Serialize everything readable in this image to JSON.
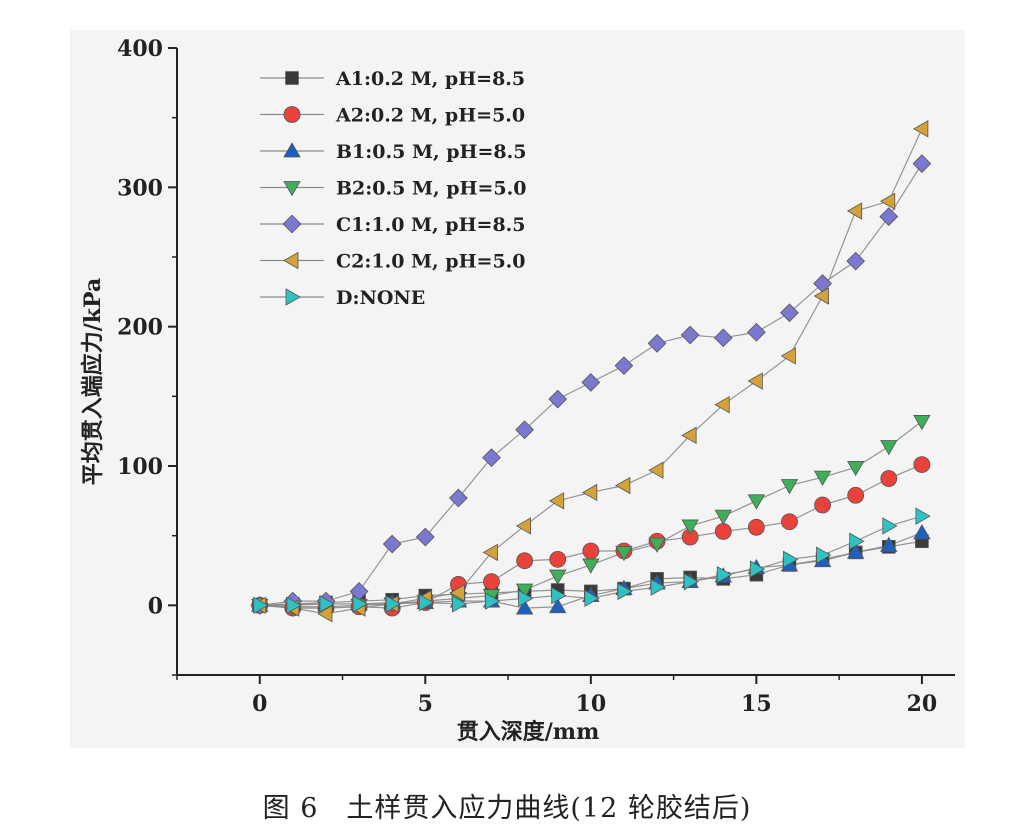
{
  "caption": "图 6　土样贯入应力曲线(12 轮胶结后)",
  "chart_data": {
    "type": "line",
    "title": "",
    "xlabel": "贯入深度/mm",
    "ylabel": "平均贯入端应力/kPa",
    "xlim": [
      -2.5,
      21
    ],
    "ylim": [
      -50,
      400
    ],
    "xticks": [
      0,
      5,
      10,
      15,
      20
    ],
    "yticks": [
      0,
      100,
      200,
      300,
      400
    ],
    "x_tick_labels": [
      "0",
      "5",
      "10",
      "15",
      "20"
    ],
    "y_tick_labels": [
      "0",
      "100",
      "200",
      "300",
      "400"
    ],
    "grid": false,
    "legend_position": "top-left",
    "x": [
      0,
      1,
      2,
      3,
      4,
      5,
      6,
      7,
      8,
      9,
      10,
      11,
      12,
      13,
      14,
      15,
      16,
      17,
      18,
      19,
      20
    ],
    "series": [
      {
        "name": "A1:0.2 M, pH=8.5",
        "marker": "square",
        "color": "#3a3a3a",
        "values": [
          0,
          1,
          2,
          3,
          4,
          7,
          8,
          9,
          10,
          11,
          10,
          12,
          19,
          20,
          19,
          22,
          29,
          33,
          38,
          42,
          46
        ]
      },
      {
        "name": "A2:0.2 M, pH=5.0",
        "marker": "circle",
        "color": "#e8423a",
        "values": [
          0,
          -2,
          -2,
          -1,
          -2,
          2,
          15,
          17,
          32,
          33,
          39,
          39,
          46,
          49,
          53,
          56,
          60,
          72,
          79,
          91,
          101
        ]
      },
      {
        "name": "B1:0.5 M, pH=8.5",
        "marker": "triangle-up",
        "color": "#1f5fbf",
        "values": [
          0,
          1,
          1,
          1,
          2,
          2,
          3,
          3,
          -2,
          -1,
          7,
          12,
          16,
          17,
          21,
          27,
          29,
          32,
          38,
          43,
          52
        ]
      },
      {
        "name": "B2:0.5 M, pH=5.0",
        "marker": "triangle-down",
        "color": "#3fae5a",
        "values": [
          0,
          -1,
          -1,
          0,
          1,
          3,
          5,
          7,
          11,
          21,
          29,
          38,
          44,
          57,
          64,
          75,
          86,
          92,
          99,
          114,
          132
        ]
      },
      {
        "name": "C1:1.0 M, pH=8.5",
        "marker": "diamond",
        "color": "#7a78cf",
        "values": [
          0,
          3,
          3,
          10,
          44,
          49,
          77,
          106,
          126,
          148,
          160,
          172,
          188,
          194,
          192,
          196,
          210,
          231,
          247,
          279,
          317
        ]
      },
      {
        "name": "C2:1.0 M, pH=5.0",
        "marker": "triangle-left",
        "color": "#d4a23a",
        "values": [
          0,
          -2,
          -6,
          -2,
          1,
          5,
          9,
          38,
          57,
          75,
          81,
          86,
          97,
          122,
          144,
          161,
          179,
          222,
          283,
          290,
          342
        ]
      },
      {
        "name": "D:NONE",
        "marker": "triangle-right",
        "color": "#2fc2c2",
        "values": [
          0,
          0,
          1,
          1,
          1,
          2,
          1,
          3,
          5,
          7,
          5,
          10,
          13,
          17,
          22,
          26,
          33,
          36,
          46,
          57,
          64
        ]
      }
    ]
  }
}
